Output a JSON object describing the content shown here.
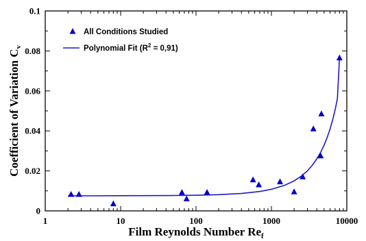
{
  "chart_data": {
    "type": "scatter",
    "xlabel": "Film Reynolds Number Re",
    "xlabel_subscript": "f",
    "ylabel": "Coefficient of Variation C",
    "ylabel_subscript": "v",
    "x_scale": "log",
    "xlim": [
      1,
      10000
    ],
    "ylim": [
      0,
      0.1
    ],
    "x_ticks": [
      1,
      10,
      100,
      1000,
      10000
    ],
    "x_tick_labels": [
      "1",
      "10",
      "100",
      "1000",
      "10000"
    ],
    "y_ticks": [
      0,
      0.02,
      0.04,
      0.06,
      0.08,
      0.1
    ],
    "y_tick_labels": [
      "0",
      "0.02",
      "0.04",
      "0.06",
      "0.08",
      "0.1"
    ],
    "grid": false,
    "legend_position": "top-left",
    "series": [
      {
        "name": "All Conditions Studied",
        "marker": "triangle",
        "color": "#0000cc",
        "x": [
          2.2,
          2.8,
          8,
          65,
          75,
          140,
          570,
          680,
          1300,
          2000,
          2600,
          3600,
          4500,
          4600,
          8000
        ],
        "y": [
          0.0082,
          0.0082,
          0.0035,
          0.0092,
          0.006,
          0.0092,
          0.0155,
          0.013,
          0.0145,
          0.0095,
          0.017,
          0.041,
          0.0275,
          0.0485,
          0.0765
        ]
      },
      {
        "name": "Polynomial Fit (R",
        "name_superscript": "2",
        "name_suffix": " = 0,91)",
        "type": "line",
        "color": "#1a1acc",
        "x": [
          2,
          10,
          50,
          100,
          200,
          400,
          700,
          1000,
          1500,
          2000,
          2500,
          3000,
          3500,
          4000,
          4500,
          5000,
          5500,
          6000,
          6500,
          7000,
          7500,
          8000
        ],
        "y": [
          0.0075,
          0.0076,
          0.0077,
          0.0078,
          0.0081,
          0.0087,
          0.0097,
          0.0108,
          0.0128,
          0.015,
          0.0174,
          0.02,
          0.0229,
          0.026,
          0.0293,
          0.0329,
          0.0368,
          0.041,
          0.0456,
          0.0506,
          0.0561,
          0.0765
        ]
      }
    ]
  }
}
